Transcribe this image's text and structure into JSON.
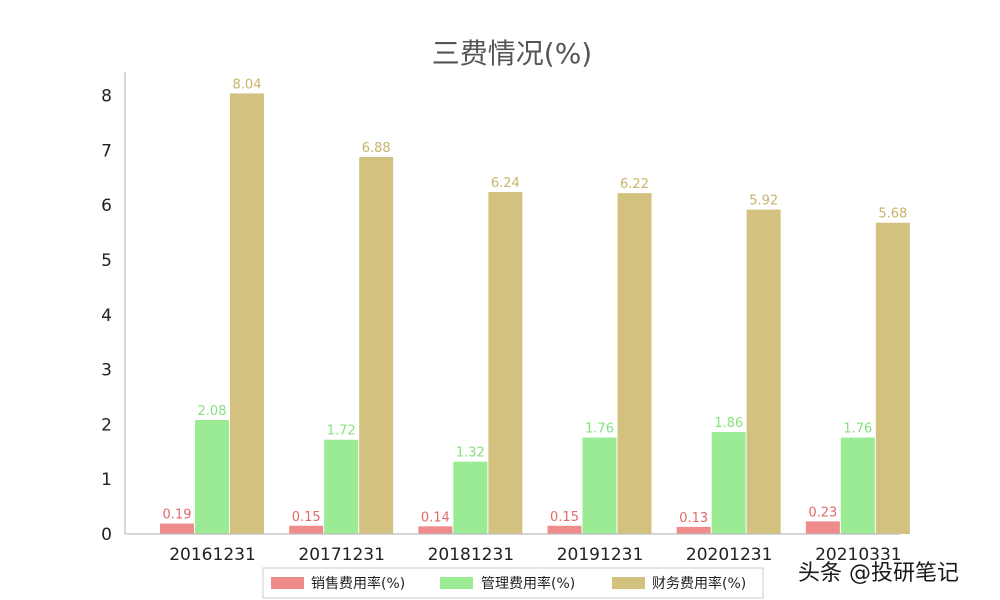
{
  "chart_data": {
    "type": "bar",
    "title": "三费情况(%)",
    "categories": [
      "20161231",
      "20171231",
      "20181231",
      "20191231",
      "20201231",
      "20210331"
    ],
    "series": [
      {
        "name": "销售费用率(%)",
        "color": "#f08b8b",
        "label_color": "#e26b6b",
        "values": [
          0.19,
          0.15,
          0.14,
          0.15,
          0.13,
          0.23
        ]
      },
      {
        "name": "管理费用率(%)",
        "color": "#9aeb93",
        "label_color": "#86e07f",
        "values": [
          2.08,
          1.72,
          1.32,
          1.76,
          1.86,
          1.76
        ]
      },
      {
        "name": "财务费用率(%)",
        "color": "#d3c17f",
        "label_color": "#c9b36a",
        "values": [
          8.04,
          6.88,
          6.24,
          6.22,
          5.92,
          5.68
        ]
      }
    ],
    "value_labels": [
      [
        "0.19",
        "0.15",
        "0.14",
        "0.15",
        "0.13",
        "0.23"
      ],
      [
        "2.08",
        "1.72",
        "1.32",
        "1.76",
        "1.86",
        "1.76"
      ],
      [
        "8.04",
        "6.88",
        "6.24",
        "6.22",
        "5.92",
        "5.68"
      ]
    ],
    "yticks": [
      "0",
      "1",
      "2",
      "3",
      "4",
      "5",
      "6",
      "7",
      "8"
    ],
    "ylim": [
      0,
      8.4
    ],
    "grid": false,
    "legend_position": "bottom-center"
  },
  "watermark": {
    "text": "头条 @投研笔记"
  }
}
